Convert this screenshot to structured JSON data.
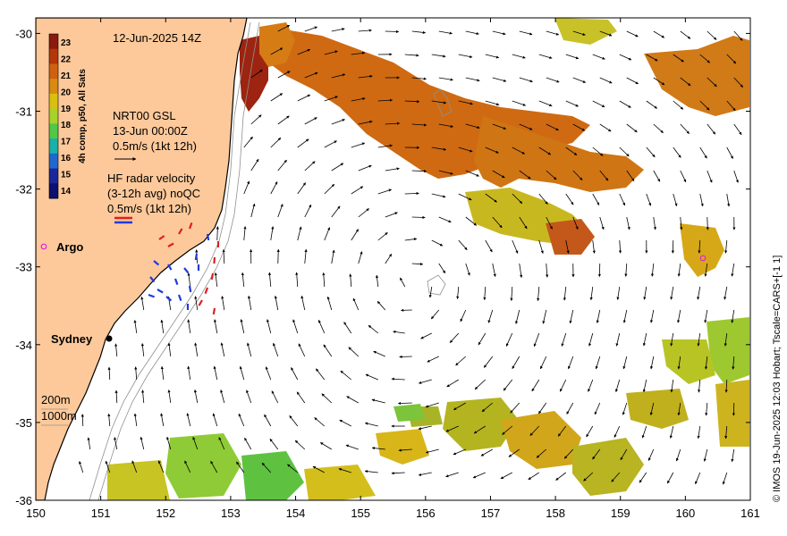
{
  "map": {
    "title": "12-Jun-2025 14Z",
    "credit": "© IMOS 19-Jun-2025 12:03 Hobart; Tscale=CARS+[-1 1]",
    "colorbar": {
      "title": "4h comp, p50, All Sats",
      "ticks": [
        "23",
        "22",
        "21",
        "20",
        "19",
        "18",
        "17",
        "16",
        "15",
        "14"
      ],
      "colors": [
        "#8b1a0e",
        "#b5360a",
        "#cf6010",
        "#d88a12",
        "#d8c010",
        "#a8d22a",
        "#4fc84a",
        "#18b0a8",
        "#1f68d0",
        "#18289a",
        "#0c1070"
      ]
    },
    "legend": {
      "nrt_line1": "NRT00 GSL",
      "nrt_line2": "13-Jun 00:00Z",
      "nrt_line3": "0.5m/s (1kt 12h)",
      "hf_line1": "HF radar velocity",
      "hf_line2": "(3-12h avg) noQC",
      "hf_line3": "0.5m/s (1kt 12h)",
      "depth1": "200m",
      "depth2": "1000m"
    },
    "places": {
      "argo": "Argo",
      "sydney": "Sydney"
    },
    "x_ticks": [
      "150",
      "151",
      "152",
      "153",
      "154",
      "155",
      "156",
      "157",
      "158",
      "159",
      "160",
      "161"
    ],
    "y_ticks": [
      "-30",
      "-31",
      "-32",
      "-33",
      "-34",
      "-35",
      "-36"
    ],
    "extent": {
      "lon": [
        150,
        161
      ],
      "lat": [
        -36,
        -29.8
      ]
    },
    "colors": {
      "land": "#fdc99a",
      "sea": "#ffffff",
      "arrow": "#000000",
      "hf_red": "#e02020",
      "hf_blue": "#1f3ae0",
      "argo": "#e020e0"
    }
  }
}
